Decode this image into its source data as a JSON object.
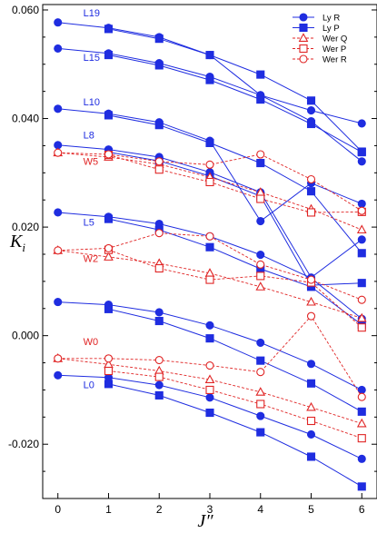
{
  "chart_data": {
    "type": "line",
    "xlabel": "J″",
    "ylabel": "K",
    "ylabel_subscript": "i",
    "xlim": [
      -0.3,
      6.3
    ],
    "ylim": [
      -0.03,
      0.061
    ],
    "x_ticks": [
      0,
      1,
      2,
      3,
      4,
      5,
      6
    ],
    "x_tick_labels": [
      "0",
      "1",
      "2",
      "3",
      "4",
      "5",
      "6"
    ],
    "y_ticks": [
      0.06,
      0.04,
      0.02,
      0.0,
      -0.02
    ],
    "y_tick_labels": [
      "0.060",
      "0.040",
      "0.020",
      "0.000",
      "-0.020"
    ],
    "grid": false,
    "legend": {
      "placement": "top-right",
      "entries": [
        {
          "label": "Ly R",
          "color": "#1f2de0",
          "marker": "circle",
          "filled": true,
          "dash": false
        },
        {
          "label": "Ly P",
          "color": "#1f2de0",
          "marker": "square",
          "filled": true,
          "dash": false
        },
        {
          "label": "Wer Q",
          "color": "#e02424",
          "marker": "triangle",
          "filled": false,
          "dash": true
        },
        {
          "label": "Wer P",
          "color": "#e02424",
          "marker": "square",
          "filled": false,
          "dash": true
        },
        {
          "label": "Wer R",
          "color": "#e02424",
          "marker": "circle",
          "filled": false,
          "dash": true
        }
      ]
    },
    "annotations": [
      {
        "text": "L19",
        "x": 0.5,
        "y": 0.0588,
        "color": "#1f2de0"
      },
      {
        "text": "L15",
        "x": 0.5,
        "y": 0.0506,
        "color": "#1f2de0"
      },
      {
        "text": "L10",
        "x": 0.5,
        "y": 0.0424,
        "color": "#1f2de0"
      },
      {
        "text": "L8",
        "x": 0.5,
        "y": 0.0363,
        "color": "#1f2de0"
      },
      {
        "text": "W5",
        "x": 0.5,
        "y": 0.0315,
        "color": "#e02424"
      },
      {
        "text": "L5",
        "x": 0.5,
        "y": 0.0203,
        "color": "#1f2de0"
      },
      {
        "text": "W2",
        "x": 0.5,
        "y": 0.0136,
        "color": "#e02424"
      },
      {
        "text": "W0",
        "x": 0.5,
        "y": -0.0017,
        "color": "#e02424"
      },
      {
        "text": "L0",
        "x": 0.5,
        "y": -0.0097,
        "color": "#1f2de0"
      }
    ],
    "series": [
      {
        "group": "L19",
        "branch": "Ly R",
        "style": "lyR",
        "x": [
          0,
          1,
          2,
          3,
          4,
          5,
          6
        ],
        "y": [
          0.0577,
          0.0567,
          0.055,
          0.0517,
          0.0443,
          0.0415,
          0.0391
        ]
      },
      {
        "group": "L19",
        "branch": "Ly P",
        "style": "lyP",
        "x": [
          1,
          2,
          3,
          4,
          5,
          6
        ],
        "y": [
          0.0565,
          0.0547,
          0.0517,
          0.0481,
          0.0433,
          0.0339
        ]
      },
      {
        "group": "L15",
        "branch": "Ly R",
        "style": "lyR",
        "x": [
          0,
          1,
          2,
          3,
          4,
          5,
          6
        ],
        "y": [
          0.0529,
          0.052,
          0.0502,
          0.0477,
          0.0443,
          0.0395,
          0.0321
        ]
      },
      {
        "group": "L15",
        "branch": "Ly P",
        "style": "lyP",
        "x": [
          1,
          2,
          3,
          4,
          5,
          6
        ],
        "y": [
          0.0517,
          0.0498,
          0.0471,
          0.0435,
          0.039,
          0.0338
        ]
      },
      {
        "group": "L10",
        "branch": "Ly R",
        "style": "lyR",
        "x": [
          0,
          1,
          2,
          3,
          4,
          5,
          6
        ],
        "y": [
          0.0418,
          0.0409,
          0.0393,
          0.0359,
          0.0211,
          0.0281,
          0.0243
        ]
      },
      {
        "group": "L10",
        "branch": "Ly P",
        "style": "lyP",
        "x": [
          1,
          2,
          3,
          4,
          5,
          6
        ],
        "y": [
          0.0406,
          0.0388,
          0.0355,
          0.0318,
          0.0266,
          0.0152
        ]
      },
      {
        "group": "L8",
        "branch": "Ly R",
        "style": "lyR",
        "x": [
          0,
          1,
          2,
          3,
          4,
          5,
          6
        ],
        "y": [
          0.0351,
          0.0343,
          0.0329,
          0.0301,
          0.0264,
          0.0107,
          0.0177
        ]
      },
      {
        "group": "L8",
        "branch": "Ly P",
        "style": "lyP",
        "x": [
          1,
          2,
          3,
          4,
          5,
          6
        ],
        "y": [
          0.0338,
          0.0322,
          0.0294,
          0.0257,
          0.0093,
          0.0097
        ]
      },
      {
        "group": "W5",
        "branch": "Wer Q",
        "style": "werQ",
        "x": [
          0,
          1,
          2,
          3,
          4,
          5,
          6
        ],
        "y": [
          0.0337,
          0.0329,
          0.0316,
          0.0292,
          0.0264,
          0.0233,
          0.0195
        ]
      },
      {
        "group": "W5",
        "branch": "Wer P",
        "style": "werP",
        "x": [
          1,
          2,
          3,
          4,
          5,
          6
        ],
        "y": [
          0.0333,
          0.0306,
          0.0283,
          0.0252,
          0.0227,
          0.0228
        ]
      },
      {
        "group": "W5",
        "branch": "Wer R",
        "style": "werR",
        "x": [
          0,
          1,
          2,
          3,
          4,
          5,
          6
        ],
        "y": [
          0.0337,
          0.0334,
          0.0321,
          0.0315,
          0.0334,
          0.0288,
          0.023
        ]
      },
      {
        "group": "L5",
        "branch": "Ly R",
        "style": "lyR",
        "x": [
          0,
          1,
          2,
          3,
          4,
          5,
          6
        ],
        "y": [
          0.0227,
          0.0219,
          0.0206,
          0.0183,
          0.0149,
          0.0106,
          0.0031
        ]
      },
      {
        "group": "L5",
        "branch": "Ly P",
        "style": "lyP",
        "x": [
          1,
          2,
          3,
          4,
          5,
          6
        ],
        "y": [
          0.0215,
          0.0195,
          0.0163,
          0.0123,
          0.009,
          0.002
        ]
      },
      {
        "group": "W2",
        "branch": "Wer Q",
        "style": "werQ",
        "x": [
          0,
          1,
          2,
          3,
          4,
          5,
          6
        ],
        "y": [
          0.0157,
          0.0145,
          0.0133,
          0.0115,
          0.009,
          0.0062,
          0.0032
        ]
      },
      {
        "group": "W2",
        "branch": "Wer P",
        "style": "werP",
        "x": [
          1,
          2,
          3,
          4,
          5,
          6
        ],
        "y": [
          0.0158,
          0.0124,
          0.0103,
          0.011,
          0.0098,
          0.0015
        ]
      },
      {
        "group": "W2",
        "branch": "Wer R",
        "style": "werR",
        "x": [
          0,
          1,
          2,
          3,
          4,
          5,
          6
        ],
        "y": [
          0.0157,
          0.0161,
          0.0189,
          0.0183,
          0.0131,
          0.0103,
          0.0066
        ]
      },
      {
        "group": "L0",
        "branch": "Ly R",
        "style": "lyR",
        "x": [
          0,
          1,
          2,
          3,
          4,
          5,
          6
        ],
        "y": [
          0.0062,
          0.0057,
          0.0043,
          0.0019,
          -0.0013,
          -0.0052,
          -0.01
        ]
      },
      {
        "group": "L0",
        "branch": "Ly P",
        "style": "lyP",
        "x": [
          1,
          2,
          3,
          4,
          5,
          6
        ],
        "y": [
          0.0049,
          0.0027,
          -0.0005,
          -0.0046,
          -0.0088,
          -0.014
        ]
      },
      {
        "group": "L0",
        "branch": "Ly R",
        "style": "lyR",
        "x": [
          0,
          1,
          2,
          3,
          4,
          5,
          6
        ],
        "y": [
          -0.0073,
          -0.0077,
          -0.0091,
          -0.0114,
          -0.0148,
          -0.0182,
          -0.0227
        ]
      },
      {
        "group": "L0",
        "branch": "Ly P",
        "style": "lyP",
        "x": [
          1,
          2,
          3,
          4,
          5,
          6
        ],
        "y": [
          -0.0089,
          -0.011,
          -0.0142,
          -0.0178,
          -0.0223,
          -0.0278
        ]
      },
      {
        "group": "W0",
        "branch": "Wer Q",
        "style": "werQ",
        "x": [
          0,
          1,
          2,
          3,
          4,
          5,
          6
        ],
        "y": [
          -0.0042,
          -0.0053,
          -0.0065,
          -0.0081,
          -0.0104,
          -0.0132,
          -0.0162
        ]
      },
      {
        "group": "W0",
        "branch": "Wer P",
        "style": "werP",
        "x": [
          1,
          2,
          3,
          4,
          5,
          6
        ],
        "y": [
          -0.0065,
          -0.0076,
          -0.01,
          -0.0126,
          -0.0157,
          -0.0189
        ]
      },
      {
        "group": "W0",
        "branch": "Wer R",
        "style": "werR",
        "x": [
          0,
          1,
          2,
          3,
          4,
          5,
          6
        ],
        "y": [
          -0.0042,
          -0.0042,
          -0.0045,
          -0.0055,
          -0.0067,
          0.0036,
          -0.0113
        ]
      }
    ]
  }
}
